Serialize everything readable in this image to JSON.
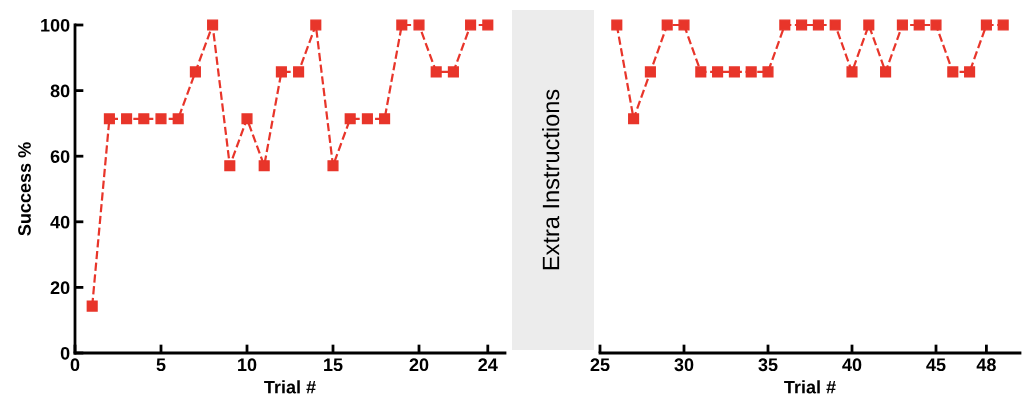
{
  "chart_data": [
    {
      "type": "line",
      "xlabel": "Trial #",
      "ylabel": "Success %",
      "annotations": [
        "Extra Instructions"
      ],
      "x": [
        1,
        2,
        3,
        4,
        5,
        6,
        7,
        8,
        9,
        10,
        11,
        12,
        13,
        14,
        15,
        16,
        17,
        18,
        19,
        20,
        21,
        22,
        23,
        24
      ],
      "series": [
        {
          "color": "#e8352a",
          "values": [
            14.3,
            71.4,
            71.4,
            71.4,
            71.4,
            71.4,
            85.7,
            100,
            57.1,
            71.4,
            57.1,
            85.7,
            85.7,
            100,
            57.1,
            71.4,
            71.4,
            71.4,
            100,
            100,
            85.7,
            85.7,
            100,
            100
          ]
        }
      ],
      "xlim": [
        0,
        25
      ],
      "xticks": [
        0,
        5,
        10,
        15,
        20,
        24
      ],
      "ylim": [
        0,
        100
      ],
      "yticks": [
        0,
        20,
        40,
        60,
        80,
        100
      ],
      "marker": "square",
      "line_style": "dashed",
      "grid": false
    },
    {
      "type": "line",
      "xlabel": "Trial #",
      "x": [
        26,
        27,
        28,
        29,
        30,
        31,
        32,
        33,
        34,
        35,
        36,
        37,
        38,
        39,
        40,
        41,
        42,
        43,
        44,
        45,
        46,
        47,
        48,
        49
      ],
      "series": [
        {
          "color": "#e8352a",
          "values": [
            100,
            71.4,
            85.7,
            100,
            100,
            85.7,
            85.7,
            85.7,
            85.7,
            85.7,
            100,
            100,
            100,
            100,
            85.7,
            100,
            85.7,
            100,
            100,
            100,
            85.7,
            85.7,
            100,
            100
          ]
        }
      ],
      "xlim": [
        25,
        50
      ],
      "xticks": [
        25,
        30,
        35,
        40,
        45,
        48
      ],
      "ylim": [
        0,
        100
      ],
      "yticks": [
        0,
        20,
        40,
        60,
        80,
        100
      ],
      "tick_labels": "x",
      "marker": "square",
      "line_style": "dashed",
      "grid": false
    }
  ]
}
